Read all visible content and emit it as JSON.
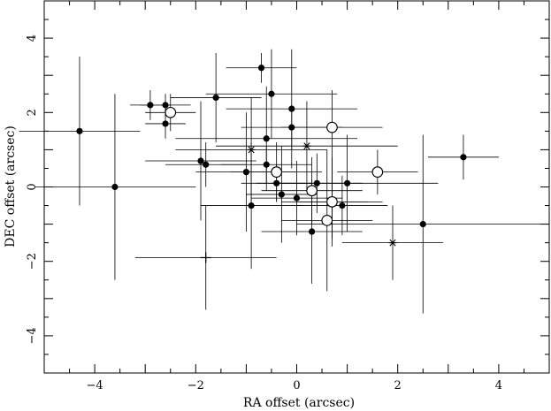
{
  "chart_data": {
    "type": "scatter",
    "title": "",
    "xlabel": "RA offset (arcsec)",
    "ylabel": "DEC offset (arcsec)",
    "xlim": [
      -5,
      5
    ],
    "ylim": [
      -5,
      5
    ],
    "x_ticks": [
      -4,
      -2,
      0,
      2,
      4
    ],
    "y_ticks": [
      -4,
      -2,
      0,
      2,
      4
    ],
    "x_tick_labels": [
      "−4",
      "−2",
      "0",
      "2",
      "4"
    ],
    "y_tick_labels": [
      "−4",
      "−2",
      "0",
      "2",
      "4"
    ],
    "grid": false,
    "series": [
      {
        "marker": "filled-circle",
        "points": [
          {
            "x": -4.3,
            "y": 1.5,
            "xerr": 1.2,
            "yerr": 2.0
          },
          {
            "x": -3.6,
            "y": 0.0,
            "xerr": 1.6,
            "yerr": 2.5
          },
          {
            "x": -2.9,
            "y": 2.2,
            "xerr": 0.4,
            "yerr": 0.4
          },
          {
            "x": -2.6,
            "y": 2.2,
            "xerr": 0.5,
            "yerr": 0.3
          },
          {
            "x": -2.6,
            "y": 1.7,
            "xerr": 0.4,
            "yerr": 0.4
          },
          {
            "x": -1.6,
            "y": 2.4,
            "xerr": 0.9,
            "yerr": 1.2
          },
          {
            "x": -1.9,
            "y": 0.7,
            "xerr": 1.1,
            "yerr": 1.6
          },
          {
            "x": -1.8,
            "y": 0.6,
            "xerr": 0.8,
            "yerr": 0.6
          },
          {
            "x": -0.7,
            "y": 3.2,
            "xerr": 0.7,
            "yerr": 0.4
          },
          {
            "x": -0.5,
            "y": 2.5,
            "xerr": 1.3,
            "yerr": 1.2
          },
          {
            "x": -0.1,
            "y": 2.1,
            "xerr": 1.3,
            "yerr": 1.6
          },
          {
            "x": -0.1,
            "y": 1.6,
            "xerr": 1.0,
            "yerr": 0.6
          },
          {
            "x": -0.6,
            "y": 1.3,
            "xerr": 1.8,
            "yerr": 1.4
          },
          {
            "x": -0.6,
            "y": 0.6,
            "xerr": 0.9,
            "yerr": 0.5
          },
          {
            "x": -1.0,
            "y": 0.4,
            "xerr": 1.0,
            "yerr": 1.6
          },
          {
            "x": -0.4,
            "y": 0.1,
            "xerr": 0.7,
            "yerr": 0.5
          },
          {
            "x": -0.9,
            "y": -0.5,
            "xerr": 1.0,
            "yerr": 1.7
          },
          {
            "x": -0.3,
            "y": -0.2,
            "xerr": 0.7,
            "yerr": 1.3
          },
          {
            "x": 0.0,
            "y": -0.3,
            "xerr": 0.9,
            "yerr": 1.0
          },
          {
            "x": 0.4,
            "y": 0.1,
            "xerr": 0.9,
            "yerr": 0.8
          },
          {
            "x": 0.3,
            "y": -1.2,
            "xerr": 1.0,
            "yerr": 1.4
          },
          {
            "x": 0.7,
            "y": -0.4,
            "xerr": 1.0,
            "yerr": 1.0
          },
          {
            "x": 0.9,
            "y": -0.5,
            "xerr": 0.9,
            "yerr": 0.8
          },
          {
            "x": 1.0,
            "y": 0.1,
            "xerr": 1.8,
            "yerr": 1.3
          },
          {
            "x": 2.5,
            "y": -1.0,
            "xerr": 2.5,
            "yerr": 2.4
          },
          {
            "x": 3.3,
            "y": 0.8,
            "xerr": 0.7,
            "yerr": 0.6
          }
        ]
      },
      {
        "marker": "open-circle",
        "points": [
          {
            "x": -2.5,
            "y": 2.0,
            "xerr": 0.5,
            "yerr": 0.5
          },
          {
            "x": 0.7,
            "y": 1.6,
            "xerr": 1.0,
            "yerr": 1.0
          },
          {
            "x": -0.4,
            "y": 0.4,
            "xerr": 0.9,
            "yerr": 0.8
          },
          {
            "x": 1.6,
            "y": 0.4,
            "xerr": 0.8,
            "yerr": 0.6
          },
          {
            "x": 0.3,
            "y": -0.1,
            "xerr": 1.0,
            "yerr": 0.9
          },
          {
            "x": 0.7,
            "y": -0.4,
            "xerr": 0.7,
            "yerr": 1.2
          },
          {
            "x": 0.6,
            "y": -0.9,
            "xerr": 0.9,
            "yerr": 1.9
          }
        ]
      },
      {
        "marker": "asterisk",
        "points": [
          {
            "x": -0.9,
            "y": 1.0,
            "xerr": 1.5,
            "yerr": 1.4
          },
          {
            "x": 0.2,
            "y": 1.1,
            "xerr": 1.8,
            "yerr": 1.2
          },
          {
            "x": 1.9,
            "y": -1.5,
            "xerr": 1.0,
            "yerr": 1.0
          }
        ]
      },
      {
        "marker": "plus",
        "points": [
          {
            "x": -1.8,
            "y": -1.9,
            "xerr": 1.4,
            "yerr": 1.4
          }
        ]
      }
    ]
  }
}
